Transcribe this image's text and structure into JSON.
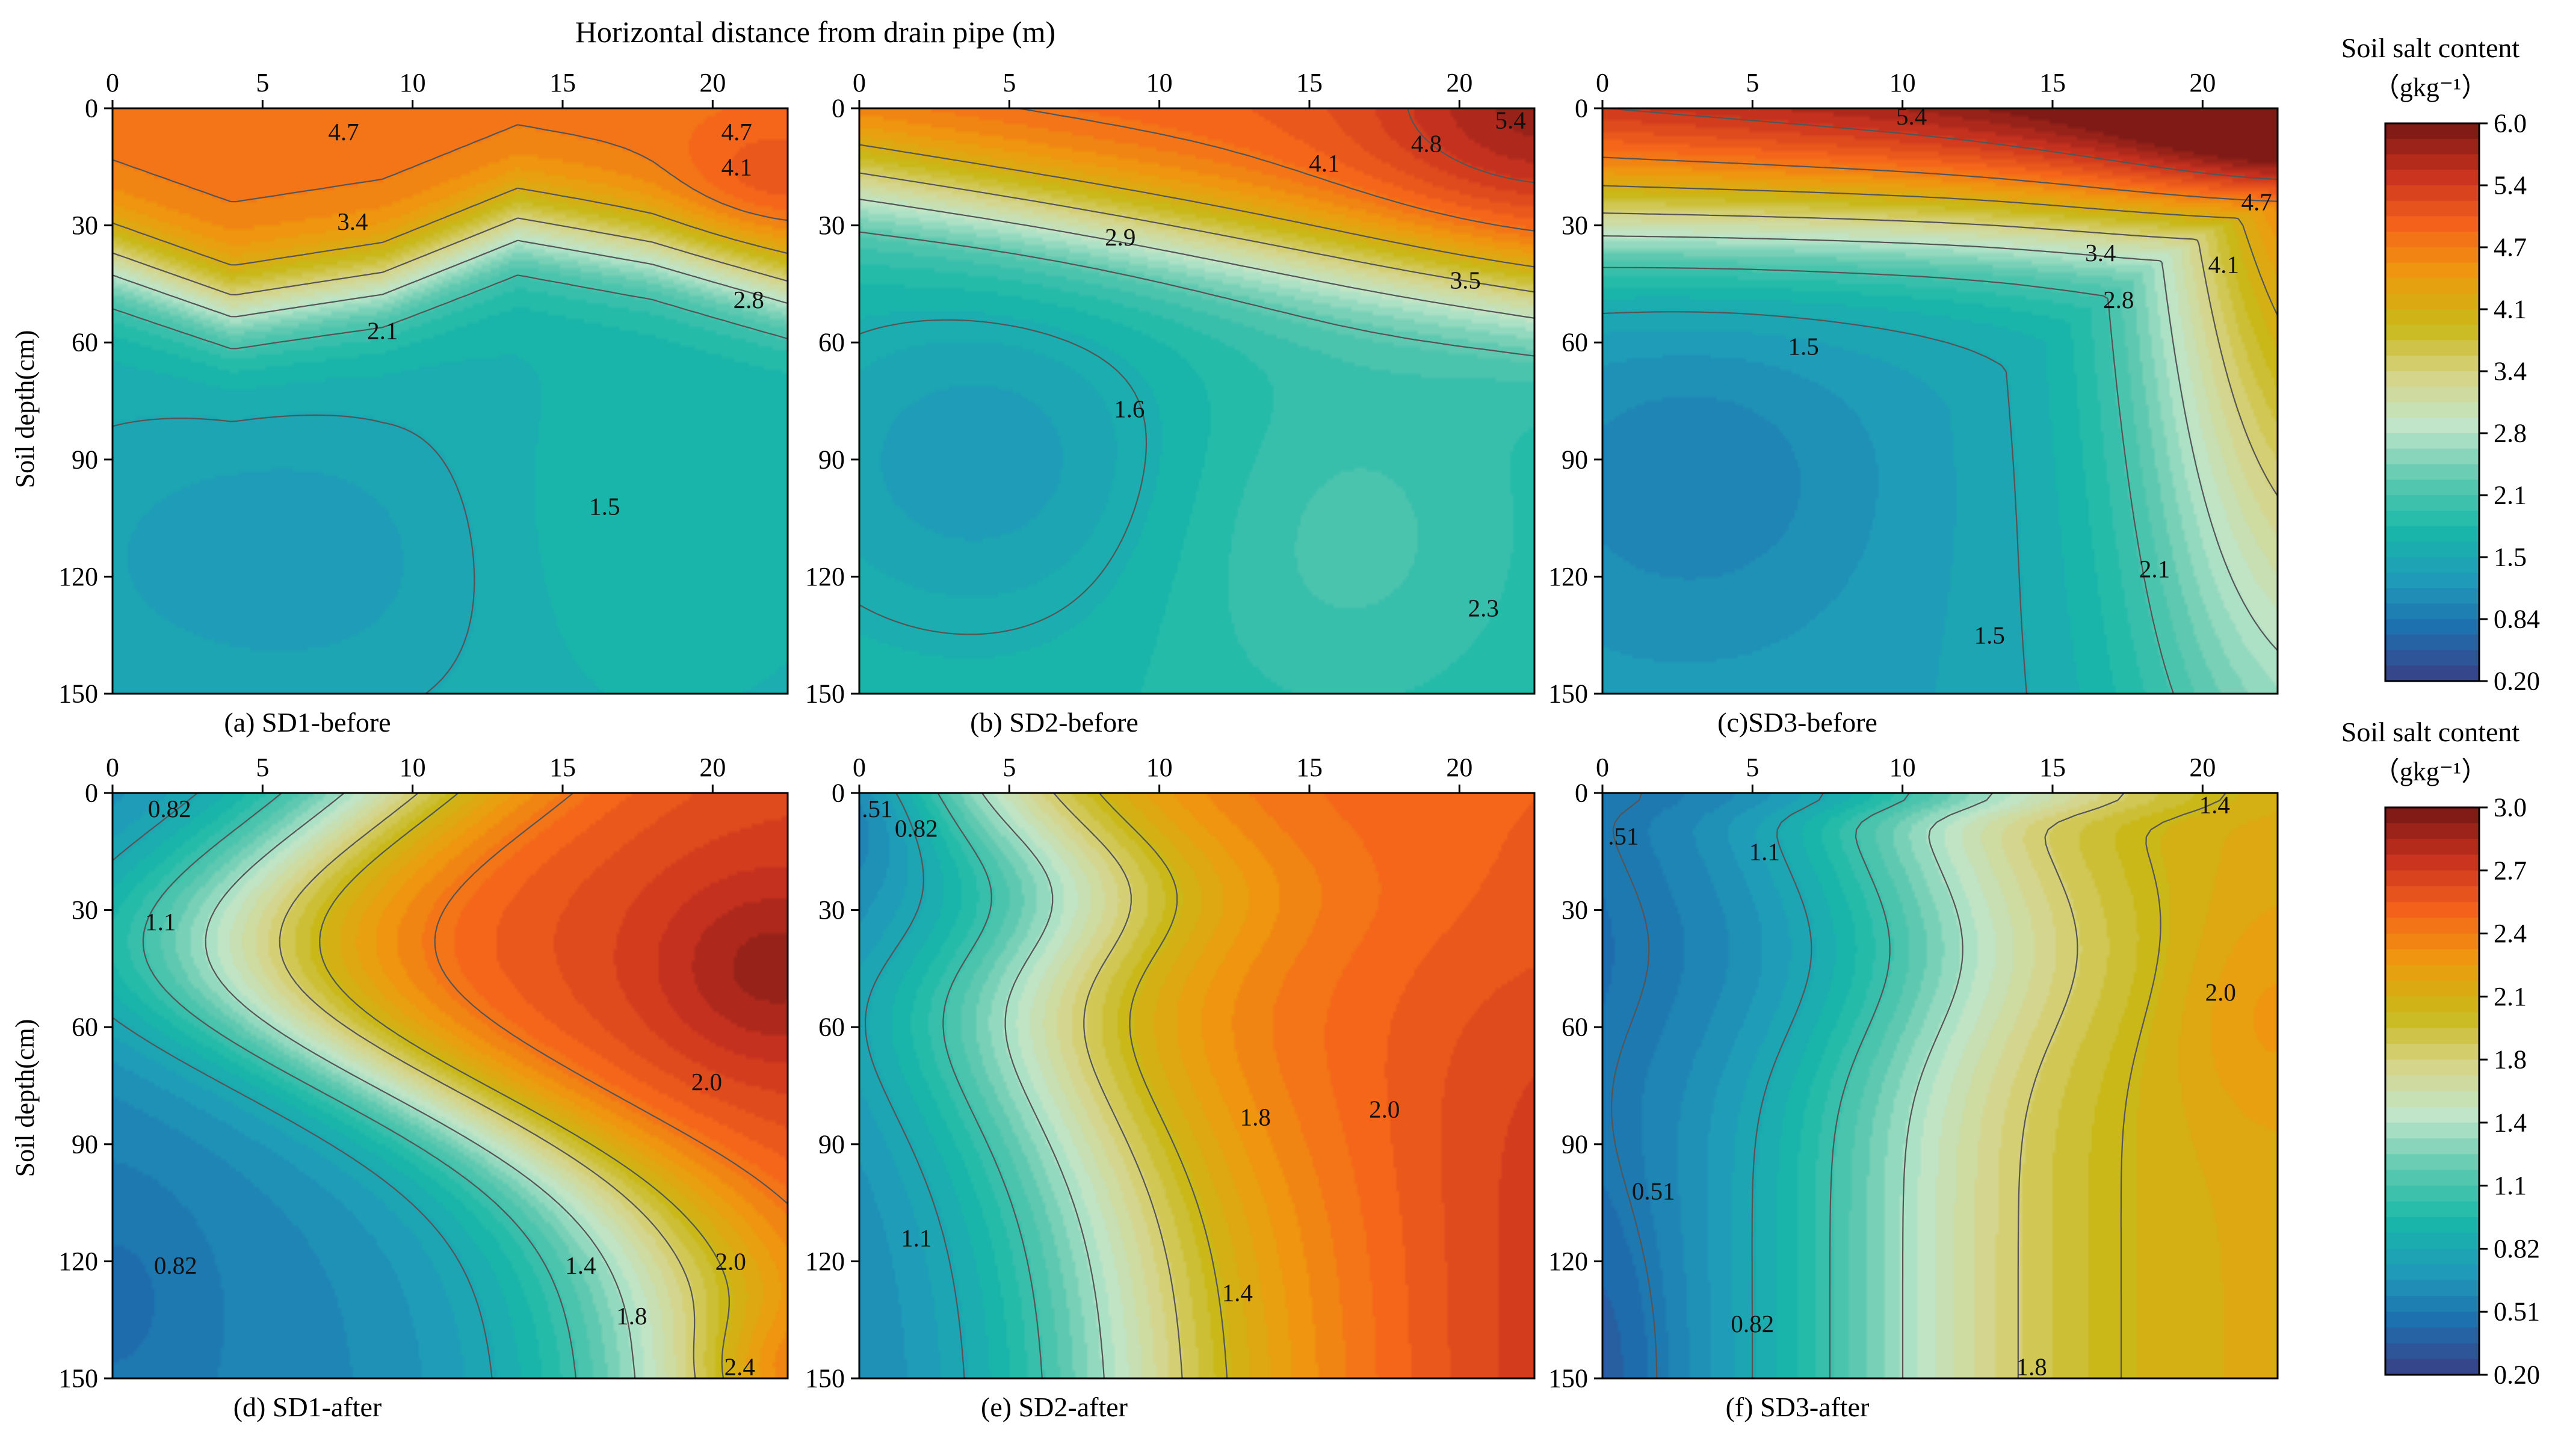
{
  "figure": {
    "x_title": "Horizontal distance from drain pipe (m)",
    "y_title": "Soil depth(cm)",
    "x_ticks": [
      "0",
      "5",
      "10",
      "15",
      "20"
    ],
    "y_ticks": [
      "0",
      "30",
      "60",
      "90",
      "120",
      "150"
    ]
  },
  "colorbars": [
    {
      "title_line1": "Soil salt content",
      "title_line2": "（gkg⁻¹）",
      "ticks": [
        "6.0",
        "5.4",
        "4.7",
        "4.1",
        "3.4",
        "2.8",
        "2.1",
        "1.5",
        "0.84",
        "0.20"
      ],
      "values": [
        6.0,
        5.4,
        4.7,
        4.1,
        3.4,
        2.8,
        2.1,
        1.5,
        0.84,
        0.2
      ]
    },
    {
      "title_line1": "Soil salt content",
      "title_line2": "（gkg⁻¹）",
      "ticks": [
        "3.0",
        "2.7",
        "2.4",
        "2.1",
        "1.8",
        "1.4",
        "1.1",
        "0.82",
        "0.51",
        "0.20"
      ],
      "values": [
        3.0,
        2.7,
        2.4,
        2.1,
        1.8,
        1.4,
        1.1,
        0.82,
        0.51,
        0.2
      ]
    }
  ],
  "colors": {
    "stops": [
      "#3a3f84",
      "#1e6eae",
      "#1f9bb9",
      "#19b8a8",
      "#5fc9b0",
      "#bfe6cb",
      "#d6d489",
      "#c9b818",
      "#ee9b0e",
      "#f5621b",
      "#c8321f",
      "#751614"
    ],
    "contour_line": "#555555"
  },
  "chart_data": [
    {
      "type": "heatmap",
      "title": "(a) SD1-before",
      "xlim": [
        0,
        22.5
      ],
      "ylim": [
        0,
        150
      ],
      "y_inverted": true,
      "value_range": [
        0.2,
        6.0
      ],
      "colorbar": 0,
      "contour_labels": [
        {
          "text": "4.7",
          "x": 7.7,
          "y": 6
        },
        {
          "text": "4.7",
          "x": 20.8,
          "y": 6
        },
        {
          "text": "4.1",
          "x": 20.8,
          "y": 15
        },
        {
          "text": "3.4",
          "x": 8.0,
          "y": 29
        },
        {
          "text": "2.8",
          "x": 21.2,
          "y": 49
        },
        {
          "text": "2.1",
          "x": 9.0,
          "y": 57
        },
        {
          "text": "1.5",
          "x": 16.4,
          "y": 102
        }
      ]
    },
    {
      "type": "heatmap",
      "title": "(b) SD2-before",
      "xlim": [
        0,
        22.5
      ],
      "ylim": [
        0,
        150
      ],
      "y_inverted": true,
      "value_range": [
        0.2,
        6.0
      ],
      "colorbar": 0,
      "contour_labels": [
        {
          "text": "5.4",
          "x": 21.7,
          "y": 3
        },
        {
          "text": "4.8",
          "x": 18.9,
          "y": 9
        },
        {
          "text": "4.1",
          "x": 15.5,
          "y": 14
        },
        {
          "text": "2.9",
          "x": 8.7,
          "y": 33
        },
        {
          "text": "3.5",
          "x": 20.2,
          "y": 44
        },
        {
          "text": "1.6",
          "x": 9.0,
          "y": 77
        },
        {
          "text": "2.3",
          "x": 20.8,
          "y": 128
        }
      ]
    },
    {
      "type": "heatmap",
      "title": "(c)SD3-before",
      "xlim": [
        0,
        22.5
      ],
      "ylim": [
        0,
        150
      ],
      "y_inverted": true,
      "value_range": [
        0.2,
        6.0
      ],
      "colorbar": 0,
      "contour_labels": [
        {
          "text": "5.4",
          "x": 10.3,
          "y": 2
        },
        {
          "text": "4.7",
          "x": 21.8,
          "y": 24
        },
        {
          "text": "3.4",
          "x": 16.6,
          "y": 37
        },
        {
          "text": "4.1",
          "x": 20.7,
          "y": 40
        },
        {
          "text": "2.8",
          "x": 17.2,
          "y": 49
        },
        {
          "text": "1.5",
          "x": 6.7,
          "y": 61
        },
        {
          "text": "2.1",
          "x": 18.4,
          "y": 118
        },
        {
          "text": "1.5",
          "x": 12.9,
          "y": 135
        }
      ]
    },
    {
      "type": "heatmap",
      "title": "(d) SD1-after",
      "xlim": [
        0,
        22.5
      ],
      "ylim": [
        0,
        150
      ],
      "y_inverted": true,
      "value_range": [
        0.2,
        3.0
      ],
      "colorbar": 1,
      "contour_labels": [
        {
          "text": "0.82",
          "x": 1.9,
          "y": 4
        },
        {
          "text": "1.1",
          "x": 1.6,
          "y": 33
        },
        {
          "text": "2.0",
          "x": 19.8,
          "y": 74
        },
        {
          "text": "0.82",
          "x": 2.1,
          "y": 121
        },
        {
          "text": "1.4",
          "x": 15.6,
          "y": 121
        },
        {
          "text": "2.0",
          "x": 20.6,
          "y": 120
        },
        {
          "text": "1.8",
          "x": 17.3,
          "y": 134
        },
        {
          "text": "2.4",
          "x": 20.9,
          "y": 147
        }
      ]
    },
    {
      "type": "heatmap",
      "title": "(e) SD2-after",
      "xlim": [
        0,
        22.5
      ],
      "ylim": [
        0,
        150
      ],
      "y_inverted": true,
      "value_range": [
        0.2,
        3.0
      ],
      "colorbar": 1,
      "contour_labels": [
        {
          "text": ".51",
          "x": 0.6,
          "y": 4
        },
        {
          "text": "0.82",
          "x": 1.9,
          "y": 9
        },
        {
          "text": "1.8",
          "x": 13.2,
          "y": 83
        },
        {
          "text": "2.0",
          "x": 17.5,
          "y": 81
        },
        {
          "text": "1.1",
          "x": 1.9,
          "y": 114
        },
        {
          "text": "1.4",
          "x": 12.6,
          "y": 128
        }
      ]
    },
    {
      "type": "heatmap",
      "title": "(f) SD3-after",
      "xlim": [
        0,
        22.5
      ],
      "ylim": [
        0,
        150
      ],
      "y_inverted": true,
      "value_range": [
        0.2,
        3.0
      ],
      "colorbar": 1,
      "contour_labels": [
        {
          "text": ".51",
          "x": 0.7,
          "y": 11
        },
        {
          "text": "1.4",
          "x": 20.4,
          "y": 3
        },
        {
          "text": "1.1",
          "x": 5.4,
          "y": 15
        },
        {
          "text": "2.0",
          "x": 20.6,
          "y": 51
        },
        {
          "text": "0.51",
          "x": 1.7,
          "y": 102
        },
        {
          "text": "0.82",
          "x": 5.0,
          "y": 136
        },
        {
          "text": "1.8",
          "x": 14.3,
          "y": 147
        }
      ]
    }
  ]
}
